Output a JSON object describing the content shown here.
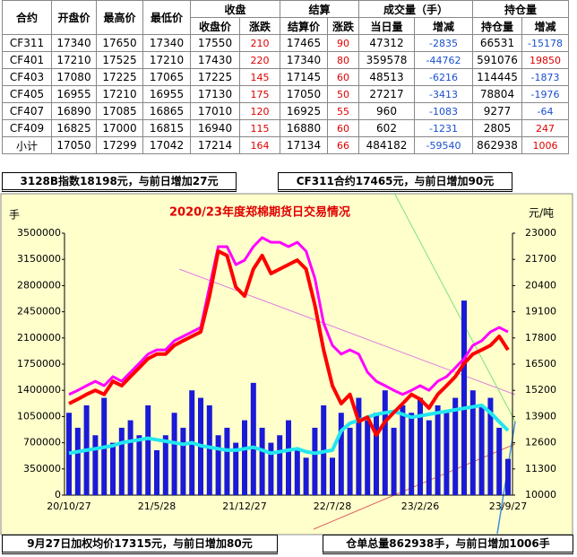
{
  "table": {
    "header": {
      "top": [
        "合约",
        "开盘价",
        "最高价",
        "最低价",
        "收盘",
        "结算",
        "成交量（手）",
        "持仓量"
      ],
      "sub": [
        "收盘价",
        "涨跌",
        "结算价",
        "涨跌",
        "当日量",
        "增减",
        "持仓量",
        "增减"
      ]
    },
    "rows": [
      [
        "CF311",
        17340,
        17650,
        17340,
        17550,
        210,
        17465,
        90,
        47312,
        -2835,
        66531,
        -15178
      ],
      [
        "CF401",
        17210,
        17525,
        17210,
        17430,
        220,
        17340,
        80,
        359578,
        -44762,
        591076,
        19850
      ],
      [
        "CF403",
        17080,
        17225,
        17065,
        17225,
        145,
        17145,
        60,
        48513,
        -6216,
        114445,
        -1873
      ],
      [
        "CF405",
        16955,
        17210,
        16955,
        17130,
        175,
        17050,
        50,
        27217,
        -3413,
        78804,
        -1976
      ],
      [
        "CF407",
        16890,
        17085,
        16865,
        17010,
        120,
        16925,
        55,
        960,
        -1083,
        9277,
        -64
      ],
      [
        "CF409",
        16825,
        17000,
        16815,
        16940,
        115,
        16880,
        60,
        602,
        -1231,
        2805,
        247
      ],
      [
        "小计",
        17050,
        17299,
        17042,
        17214,
        164,
        17134,
        66,
        484182,
        -59540,
        862938,
        1006
      ]
    ]
  },
  "notes": {
    "top_left": "3128B指数18198元，与前日增加27元",
    "top_right": "CF311合约17465元，与前日增加90元",
    "bottom_left": "9月27日加权均价17315元，与前日增加80元",
    "bottom_right": "仓单总量862938手，与前日增加1006手"
  },
  "chart_data": {
    "type": "bar_line",
    "title": "2020/23年度郑棉期货日交易情况",
    "y_label": "手",
    "y2_label": "元/吨",
    "categories": [
      "20/10/27",
      null,
      null,
      null,
      null,
      null,
      null,
      null,
      null,
      null,
      "21/5/28",
      null,
      null,
      null,
      null,
      null,
      null,
      null,
      null,
      null,
      "21/12/27",
      null,
      null,
      null,
      null,
      null,
      null,
      null,
      null,
      null,
      "22/7/28",
      null,
      null,
      null,
      null,
      null,
      null,
      null,
      null,
      null,
      "23/2/26",
      null,
      null,
      null,
      null,
      null,
      null,
      null,
      null,
      null,
      "23/9/27"
    ],
    "ylim": [
      0,
      3500000
    ],
    "yticks": [
      0,
      350000,
      700000,
      1050000,
      1400000,
      1750000,
      2100000,
      2450000,
      2800000,
      3150000,
      3500000
    ],
    "y2lim": [
      10000,
      23000
    ],
    "y2ticks": [
      10000,
      11300,
      12600,
      13900,
      15200,
      16500,
      17800,
      19100,
      20400,
      21700,
      23000
    ],
    "series": [
      {
        "type": "bar",
        "color": "#1a1ad8",
        "values": [
          1100000,
          900000,
          1200000,
          800000,
          1300000,
          700000,
          900000,
          1000000,
          800000,
          1200000,
          600000,
          800000,
          1100000,
          900000,
          1400000,
          1300000,
          1200000,
          800000,
          900000,
          700000,
          1000000,
          1500000,
          900000,
          700000,
          800000,
          1000000,
          600000,
          500000,
          900000,
          1200000,
          500000,
          1100000,
          900000,
          1300000,
          1000000,
          1100000,
          1400000,
          900000,
          1200000,
          1100000,
          1300000,
          1000000,
          1200000,
          1100000,
          1300000,
          2600000,
          1400000,
          1200000,
          1300000,
          900000,
          484182
        ]
      },
      {
        "type": "line",
        "color": "#22e6f0",
        "width": 4,
        "values": [
          560000,
          580000,
          600000,
          620000,
          640000,
          660000,
          700000,
          720000,
          740000,
          760000,
          740000,
          720000,
          700000,
          680000,
          700000,
          660000,
          640000,
          620000,
          600000,
          600000,
          620000,
          640000,
          600000,
          560000,
          580000,
          600000,
          620000,
          580000,
          560000,
          580000,
          600000,
          860000,
          960000,
          1000000,
          1040000,
          1080000,
          1100000,
          1120000,
          1080000,
          1040000,
          1060000,
          1080000,
          1100000,
          1120000,
          1140000,
          1160000,
          1180000,
          1200000,
          1100000,
          980000,
          862938
        ]
      },
      {
        "type": "line",
        "color": "#ff00ff",
        "width": 3,
        "axis": "y2",
        "values": [
          15000,
          15200,
          15430,
          15650,
          15430,
          15880,
          15650,
          16100,
          16540,
          17000,
          17210,
          17210,
          17660,
          17880,
          18100,
          18320,
          20330,
          22330,
          22330,
          21440,
          21660,
          22330,
          22780,
          22550,
          22550,
          22330,
          22550,
          22110,
          20770,
          18540,
          17430,
          17000,
          17210,
          17000,
          16100,
          15650,
          15430,
          15200,
          15000,
          15200,
          15430,
          15200,
          15650,
          15880,
          16320,
          16770,
          17430,
          17660,
          18100,
          18320,
          18100
        ]
      },
      {
        "type": "line",
        "color": "#ff0000",
        "width": 4,
        "axis": "y2",
        "values": [
          14540,
          14760,
          15000,
          15200,
          15000,
          15650,
          15430,
          15880,
          16320,
          16770,
          17000,
          17000,
          17430,
          17660,
          17880,
          18100,
          19880,
          22110,
          21890,
          20330,
          19880,
          21220,
          21890,
          21000,
          21220,
          21440,
          21660,
          21220,
          19440,
          17210,
          15430,
          14540,
          15000,
          13650,
          13870,
          12980,
          13650,
          14100,
          14540,
          15000,
          14760,
          14320,
          15000,
          15430,
          15880,
          16540,
          17000,
          17210,
          17430,
          17880,
          17210
        ]
      }
    ]
  }
}
